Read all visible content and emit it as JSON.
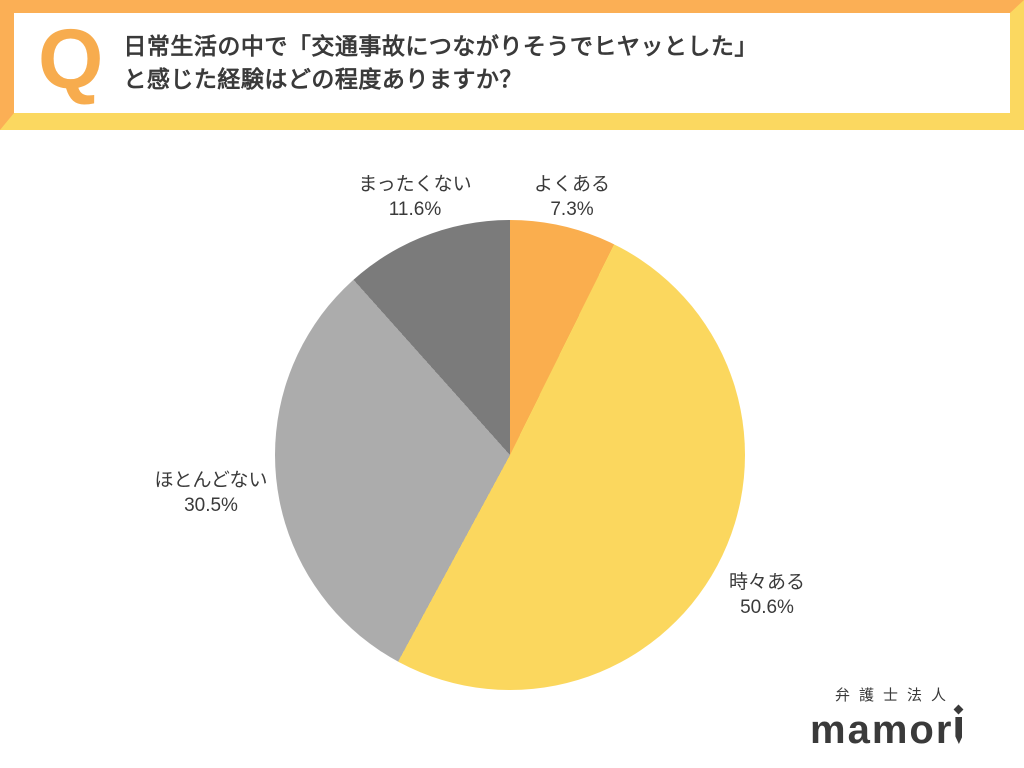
{
  "header": {
    "q_label": "Q",
    "title_line1": "日常生活の中で「交通事故につながりそうでヒヤッとした」",
    "title_line2": "と感じた経験はどの程度ありますか？"
  },
  "colors": {
    "frame_orange": "#fbaf55",
    "frame_yellow": "#fbd860",
    "q_mark_orange": "#f7ac4e",
    "text_dark": "#3a3a3a"
  },
  "chart_data": {
    "type": "pie",
    "title": "",
    "start_angle_deg": 0,
    "direction": "clockwise",
    "segments": [
      {
        "label": "よくある",
        "value_pct": 7.3,
        "pct_text": "7.3%",
        "color": "#faae4e"
      },
      {
        "label": "時々ある",
        "value_pct": 50.6,
        "pct_text": "50.6%",
        "color": "#fbd75e"
      },
      {
        "label": "ほとんどない",
        "value_pct": 30.5,
        "pct_text": "30.5%",
        "color": "#acacac"
      },
      {
        "label": "まったくない",
        "value_pct": 11.6,
        "pct_text": "11.6%",
        "color": "#7b7b7b"
      }
    ]
  },
  "logo": {
    "company_type": "弁護士法人",
    "brand": "mamori",
    "brand_prefix": "mamor"
  }
}
